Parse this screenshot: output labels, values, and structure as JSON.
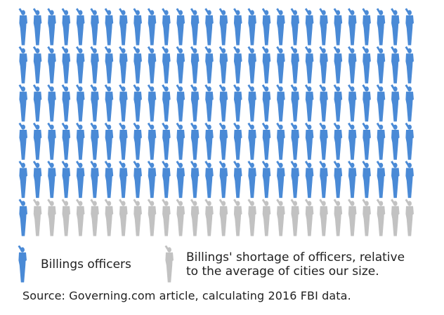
{
  "chart_data": {
    "type": "pictograph",
    "grid": {
      "rows": 6,
      "columns": 28
    },
    "series": [
      {
        "name": "Billings officers",
        "count": 141,
        "color": "#4a8ad6"
      },
      {
        "name": "Billings' shortage of officers, relative to the average of cities our size.",
        "count": 27,
        "color": "#c2c2c2"
      }
    ],
    "legend": [
      {
        "text": "Billings officers",
        "color": "#4a8ad6"
      },
      {
        "lines": [
          "Billings' shortage of officers, relative",
          "to the average of cities our size."
        ],
        "color": "#c2c2c2"
      }
    ],
    "source": "Source: Governing.com article, calculating 2016 FBI data."
  }
}
